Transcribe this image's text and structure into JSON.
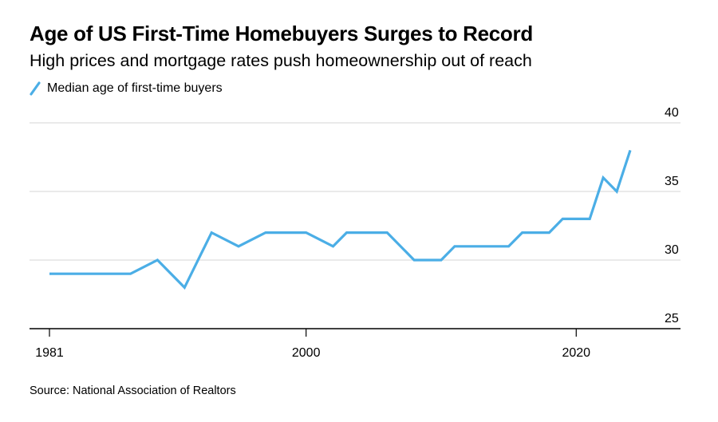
{
  "title": "Age of US First-Time Homebuyers Surges to Record",
  "subtitle": "High prices and mortgage rates push homeownership out of reach",
  "source": "Source: National Association of Realtors",
  "colors": {
    "line": "#4baee6",
    "grid": "#d6d6d6",
    "axis": "#000000"
  },
  "chart_data": {
    "type": "line",
    "legend_position": "top-left",
    "grid": true,
    "xlim": [
      1981,
      2027
    ],
    "ylim": [
      25,
      40
    ],
    "x_ticks": [
      {
        "value": 1981,
        "label": "1981"
      },
      {
        "value": 2000,
        "label": "2000"
      },
      {
        "value": 2020,
        "label": "2020"
      }
    ],
    "y_ticks": [
      {
        "value": 40,
        "label": "40"
      },
      {
        "value": 35,
        "label": "35"
      },
      {
        "value": 30,
        "label": "30"
      },
      {
        "value": 25,
        "label": "25"
      }
    ],
    "series": [
      {
        "name": "Median age of first-time buyers",
        "color": "#4baee6",
        "x": [
          1981,
          1985,
          1987,
          1989,
          1991,
          1993,
          1995,
          1997,
          1999,
          2000,
          2002,
          2003,
          2004,
          2005,
          2006,
          2008,
          2010,
          2011,
          2012,
          2013,
          2014,
          2015,
          2016,
          2017,
          2018,
          2019,
          2020,
          2021,
          2022,
          2023,
          2024
        ],
        "y": [
          29,
          29,
          29,
          30,
          28,
          32,
          31,
          32,
          32,
          32,
          31,
          32,
          32,
          32,
          32,
          30,
          30,
          31,
          31,
          31,
          31,
          31,
          32,
          32,
          32,
          33,
          33,
          33,
          36,
          35,
          38
        ]
      }
    ]
  }
}
